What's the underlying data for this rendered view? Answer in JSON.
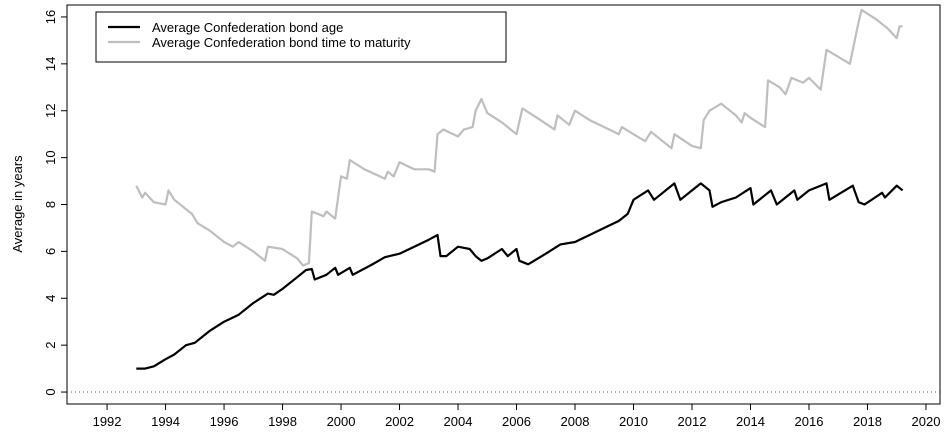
{
  "chart_data": {
    "type": "line",
    "y_label": "Average in years",
    "legend": "topleft",
    "hline": 0,
    "xlim": [
      1990.63,
      2020.48
    ],
    "ylim": [
      -0.51,
      16.51
    ],
    "xticks": [
      1992,
      1994,
      1996,
      1998,
      2000,
      2002,
      2004,
      2006,
      2008,
      2010,
      2012,
      2014,
      2016,
      2018,
      2020
    ],
    "yticks": [
      0,
      2,
      4,
      6,
      8,
      10,
      12,
      14,
      16
    ],
    "series": [
      {
        "name": "Average Confederation bond age",
        "color": "#000000",
        "x": [
          1993.0,
          1993.3,
          1993.6,
          1994.0,
          1994.3,
          1994.7,
          1995.0,
          1995.5,
          1996.0,
          1996.5,
          1997.0,
          1997.5,
          1997.7,
          1998.0,
          1998.5,
          1998.8,
          1999.0,
          1999.1,
          1999.5,
          1999.8,
          1999.9,
          2000.3,
          2000.4,
          2001.0,
          2001.5,
          2002.0,
          2002.5,
          2003.0,
          2003.3,
          2003.4,
          2003.6,
          2004.0,
          2004.4,
          2004.6,
          2004.8,
          2005.0,
          2005.5,
          2005.7,
          2006.0,
          2006.1,
          2006.4,
          2007.0,
          2007.5,
          2008.0,
          2008.5,
          2009.0,
          2009.5,
          2009.8,
          2010.0,
          2010.5,
          2010.7,
          2011.0,
          2011.4,
          2011.6,
          2012.0,
          2012.3,
          2012.6,
          2012.7,
          2013.0,
          2013.5,
          2014.0,
          2014.1,
          2014.7,
          2014.9,
          2015.5,
          2015.6,
          2016.0,
          2016.6,
          2016.7,
          2017.5,
          2017.7,
          2017.9,
          2018.5,
          2018.6,
          2019.0,
          2019.2
        ],
        "values": [
          1.0,
          1.0,
          1.1,
          1.4,
          1.6,
          2.0,
          2.1,
          2.6,
          3.0,
          3.3,
          3.8,
          4.2,
          4.15,
          4.4,
          4.9,
          5.2,
          5.25,
          4.8,
          5.0,
          5.3,
          5.0,
          5.3,
          5.0,
          5.4,
          5.75,
          5.9,
          6.2,
          6.5,
          6.7,
          5.8,
          5.8,
          6.2,
          6.1,
          5.8,
          5.6,
          5.7,
          6.1,
          5.8,
          6.1,
          5.6,
          5.45,
          5.9,
          6.3,
          6.4,
          6.7,
          7.0,
          7.3,
          7.6,
          8.2,
          8.6,
          8.2,
          8.5,
          8.9,
          8.2,
          8.6,
          8.9,
          8.6,
          7.9,
          8.1,
          8.3,
          8.7,
          8.0,
          8.6,
          8.0,
          8.6,
          8.2,
          8.6,
          8.9,
          8.2,
          8.8,
          8.1,
          8.0,
          8.5,
          8.3,
          8.8,
          8.6
        ]
      },
      {
        "name": "Average Confederation bond time to maturity",
        "color": "#bebebe",
        "x": [
          1993.0,
          1993.2,
          1993.3,
          1993.6,
          1994.0,
          1994.1,
          1994.3,
          1994.9,
          1995.1,
          1995.5,
          1996.0,
          1996.3,
          1996.5,
          1997.0,
          1997.4,
          1997.5,
          1998.0,
          1998.5,
          1998.7,
          1998.9,
          1999.0,
          1999.4,
          1999.5,
          1999.8,
          2000.0,
          2000.2,
          2000.3,
          2000.8,
          2001.5,
          2001.6,
          2001.8,
          2002.0,
          2002.5,
          2003.0,
          2003.2,
          2003.3,
          2003.5,
          2004.0,
          2004.2,
          2004.5,
          2004.6,
          2004.8,
          2005.0,
          2005.5,
          2006.0,
          2006.2,
          2006.7,
          2007.3,
          2007.4,
          2007.8,
          2008.0,
          2008.5,
          2009.0,
          2009.5,
          2009.6,
          2010.0,
          2010.4,
          2010.6,
          2011.0,
          2011.3,
          2011.4,
          2012.0,
          2012.3,
          2012.4,
          2012.6,
          2013.0,
          2013.5,
          2013.7,
          2013.8,
          2014.0,
          2014.5,
          2014.6,
          2015.0,
          2015.2,
          2015.4,
          2015.8,
          2016.0,
          2016.4,
          2016.6,
          2017.0,
          2017.4,
          2017.5,
          2017.7,
          2017.8,
          2018.3,
          2018.7,
          2019.0,
          2019.1,
          2019.2
        ],
        "values": [
          8.8,
          8.3,
          8.5,
          8.1,
          8.0,
          8.6,
          8.2,
          7.6,
          7.2,
          6.9,
          6.4,
          6.2,
          6.4,
          6.0,
          5.6,
          6.2,
          6.1,
          5.7,
          5.4,
          5.5,
          7.7,
          7.5,
          7.7,
          7.4,
          9.2,
          9.1,
          9.9,
          9.5,
          9.1,
          9.4,
          9.2,
          9.8,
          9.5,
          9.5,
          9.4,
          11.0,
          11.2,
          10.9,
          11.2,
          11.3,
          12.0,
          12.5,
          11.9,
          11.5,
          11.0,
          12.1,
          11.7,
          11.2,
          11.8,
          11.4,
          12.0,
          11.6,
          11.3,
          11.0,
          11.3,
          11.0,
          10.7,
          11.1,
          10.7,
          10.4,
          11.0,
          10.5,
          10.4,
          11.6,
          12.0,
          12.3,
          11.8,
          11.5,
          11.9,
          11.7,
          11.3,
          13.3,
          13.0,
          12.7,
          13.4,
          13.2,
          13.4,
          12.9,
          14.6,
          14.3,
          14.0,
          14.6,
          15.8,
          16.3,
          15.9,
          15.5,
          15.1,
          15.6,
          15.6
        ]
      }
    ]
  }
}
